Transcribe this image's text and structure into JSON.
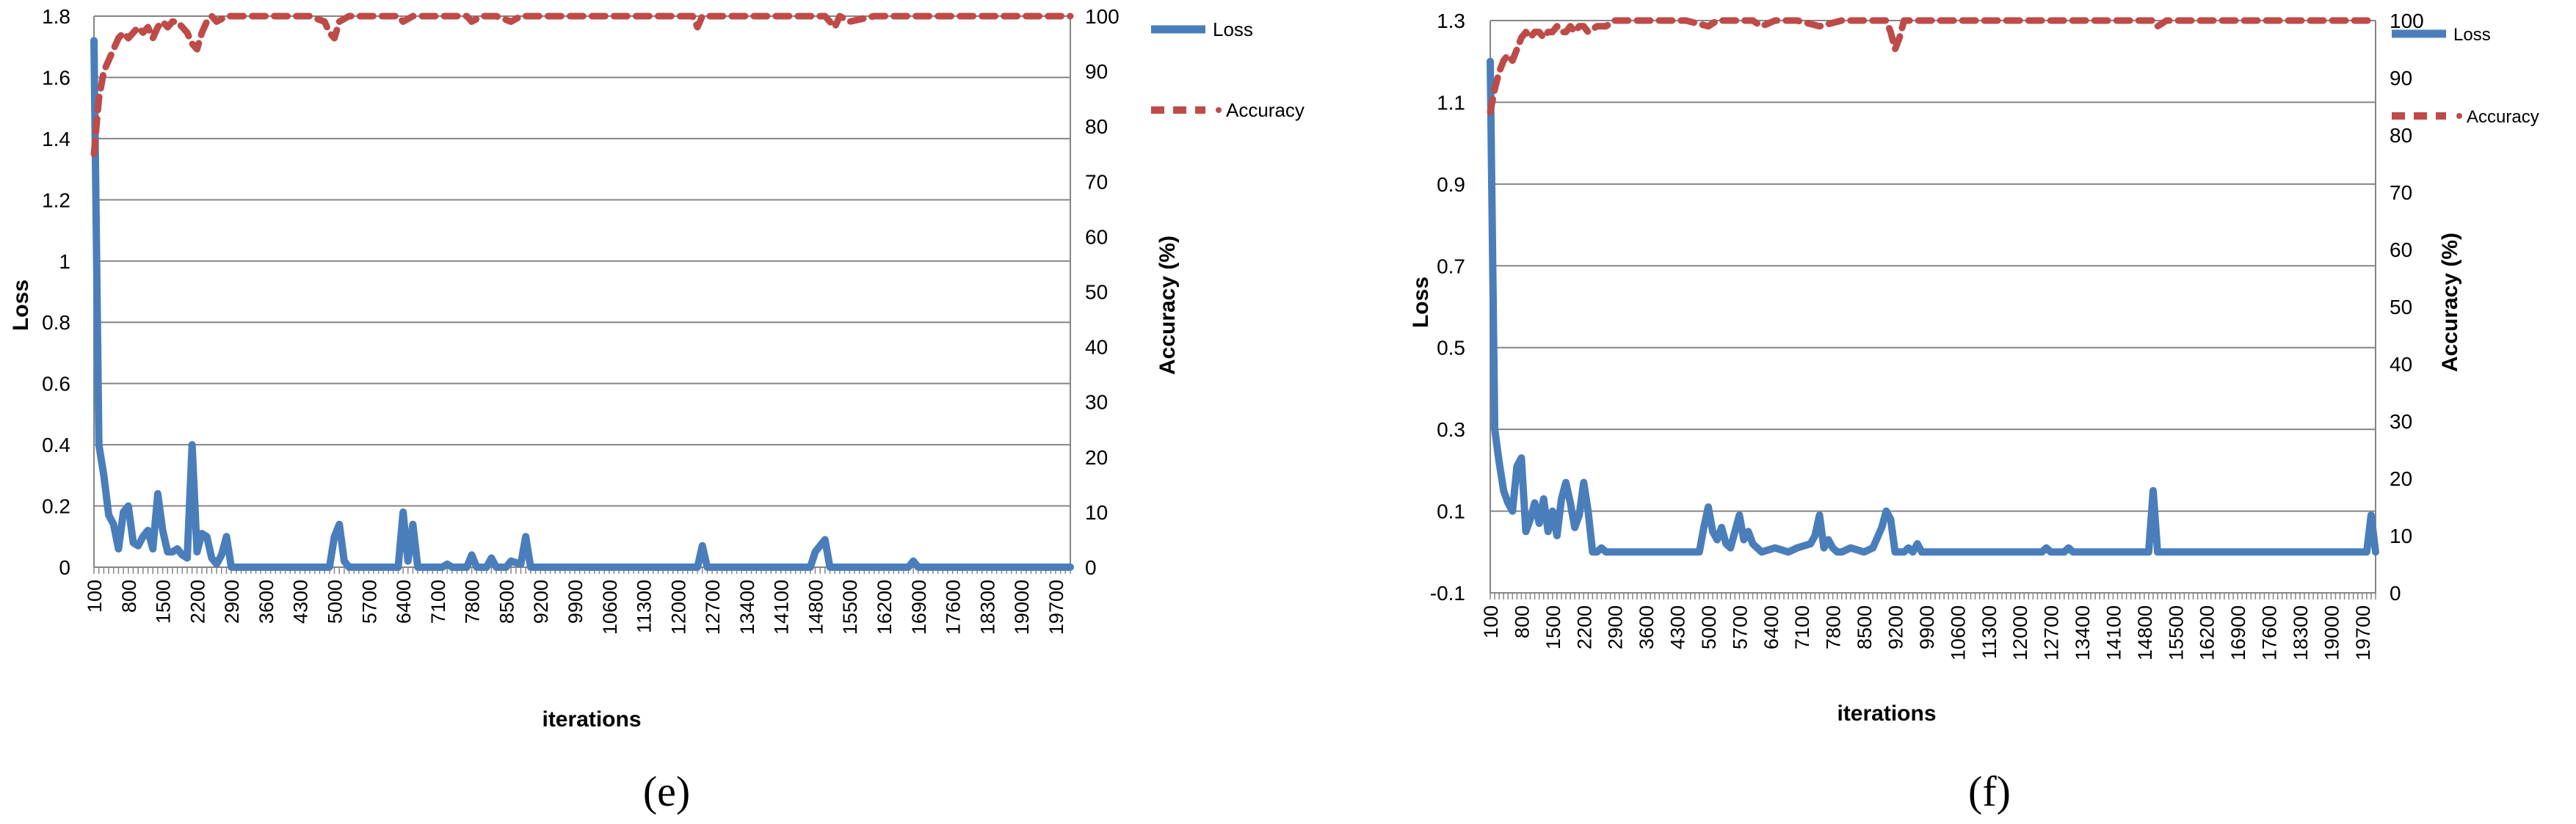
{
  "colors": {
    "loss": "#4a7ebb",
    "accuracy": "#be4b48",
    "grid": "#858585",
    "axis": "#858585",
    "text": "#000000"
  },
  "chart_data": [
    {
      "type": "line",
      "panel_label": "(e)",
      "xlabel": "iterations",
      "ylabel": "Loss",
      "y2label": "Accuracy (%)",
      "ylim": [
        0,
        1.8
      ],
      "yticks": [
        "0",
        "0.2",
        "0.4",
        "0.6",
        "0.8",
        "1",
        "1.2",
        "1.4",
        "1.6",
        "1.8"
      ],
      "y2lim": [
        0,
        100
      ],
      "y2ticks": [
        "0",
        "10",
        "20",
        "30",
        "40",
        "50",
        "60",
        "70",
        "80",
        "90",
        "100"
      ],
      "xlim": [
        100,
        20000
      ],
      "x_tick_labels": [
        "100",
        "800",
        "1500",
        "2200",
        "2900",
        "3600",
        "4300",
        "5000",
        "5700",
        "6400",
        "7100",
        "7800",
        "8500",
        "9200",
        "9900",
        "10600",
        "11300",
        "12000",
        "12700",
        "13400",
        "14100",
        "14800",
        "15500",
        "16200",
        "16900",
        "17600",
        "18300",
        "19000",
        "19700"
      ],
      "legend": [
        "Loss",
        "Accuracy"
      ],
      "legend_position": "right",
      "series": [
        {
          "name": "Loss",
          "axis": "left",
          "style": "solid",
          "x": [
            100,
            200,
            300,
            400,
            500,
            600,
            700,
            800,
            900,
            1000,
            1100,
            1200,
            1300,
            1400,
            1500,
            1600,
            1700,
            1800,
            1900,
            2000,
            2100,
            2200,
            2300,
            2400,
            2500,
            2600,
            2700,
            2800,
            2900,
            3000,
            3100,
            3300,
            4900,
            5000,
            5100,
            5200,
            5300,
            6300,
            6400,
            6500,
            6600,
            6700,
            6800,
            7200,
            7300,
            7400,
            7700,
            7800,
            7900,
            8100,
            8200,
            8300,
            8500,
            8600,
            8800,
            8900,
            9000,
            12400,
            12500,
            12600,
            14700,
            14800,
            14900,
            15000,
            15100,
            15200,
            16700,
            16800,
            16900,
            20000
          ],
          "values": [
            1.72,
            0.4,
            0.3,
            0.17,
            0.14,
            0.06,
            0.18,
            0.2,
            0.08,
            0.07,
            0.1,
            0.12,
            0.06,
            0.24,
            0.12,
            0.05,
            0.05,
            0.06,
            0.04,
            0.03,
            0.4,
            0.05,
            0.11,
            0.1,
            0.03,
            0.01,
            0.04,
            0.1,
            0.0,
            0.0,
            0.0,
            0.0,
            0.0,
            0.1,
            0.14,
            0.02,
            0.0,
            0.0,
            0.18,
            0.02,
            0.14,
            0.0,
            0.0,
            0.0,
            0.01,
            0.0,
            0.0,
            0.04,
            0.0,
            0.0,
            0.03,
            0.0,
            0.0,
            0.02,
            0.01,
            0.1,
            0.0,
            0.0,
            0.07,
            0.0,
            0.0,
            0.05,
            0.07,
            0.09,
            0.0,
            0.0,
            0.0,
            0.02,
            0.0,
            0.0
          ]
        },
        {
          "name": "Accuracy",
          "axis": "right",
          "style": "dashed",
          "x": [
            100,
            200,
            300,
            400,
            500,
            600,
            700,
            800,
            900,
            1000,
            1100,
            1200,
            1300,
            1400,
            1500,
            1600,
            1700,
            1800,
            1900,
            2000,
            2100,
            2200,
            2300,
            2400,
            2500,
            2600,
            2800,
            3000,
            3500,
            4000,
            4500,
            4800,
            4900,
            5000,
            5100,
            5300,
            5700,
            6300,
            6400,
            6600,
            7000,
            7700,
            7800,
            8000,
            8300,
            8600,
            8800,
            9000,
            9500,
            10500,
            11000,
            12000,
            12300,
            12400,
            12500,
            13000,
            14000,
            15000,
            15200,
            15300,
            15500,
            16000,
            17000,
            18000,
            19000,
            20000
          ],
          "values": [
            75,
            85,
            90,
            92,
            94,
            96,
            97,
            96,
            97,
            98,
            97,
            98,
            96,
            98,
            99,
            98,
            99,
            99,
            98,
            97,
            95,
            94,
            97,
            99,
            100,
            99,
            100,
            100,
            100,
            100,
            100,
            99,
            97,
            96,
            99,
            100,
            100,
            100,
            99,
            100,
            100,
            100,
            99,
            100,
            100,
            99,
            100,
            100,
            100,
            100,
            100,
            100,
            100,
            98,
            100,
            100,
            100,
            100,
            98,
            100,
            99,
            100,
            100,
            100,
            100,
            100
          ]
        }
      ]
    },
    {
      "type": "line",
      "panel_label": "(f)",
      "xlabel": "iterations",
      "ylabel": "Loss",
      "y2label": "Accuracy (%)",
      "ylim": [
        -0.1,
        1.3
      ],
      "yticks": [
        "-0.1",
        "0.1",
        "0.3",
        "0.5",
        "0.7",
        "0.9",
        "1.1",
        "1.3"
      ],
      "y2lim": [
        0,
        100
      ],
      "y2ticks": [
        "0",
        "10",
        "20",
        "30",
        "40",
        "50",
        "60",
        "70",
        "80",
        "90",
        "100"
      ],
      "xlim": [
        100,
        20000
      ],
      "x_tick_labels": [
        "100",
        "800",
        "1500",
        "2200",
        "2900",
        "3600",
        "4300",
        "5000",
        "5700",
        "6400",
        "7100",
        "7800",
        "8500",
        "9200",
        "9900",
        "10600",
        "11300",
        "12000",
        "12700",
        "13400",
        "14100",
        "14800",
        "15500",
        "16200",
        "16900",
        "17600",
        "18300",
        "19000",
        "19700"
      ],
      "legend": [
        "Loss",
        "Accuracy"
      ],
      "legend_position": "right",
      "series": [
        {
          "name": "Loss",
          "axis": "left",
          "style": "solid",
          "x": [
            100,
            200,
            300,
            400,
            500,
            600,
            700,
            800,
            900,
            1000,
            1100,
            1200,
            1300,
            1400,
            1500,
            1600,
            1700,
            1800,
            1900,
            2000,
            2100,
            2200,
            2300,
            2400,
            2500,
            2600,
            2700,
            2800,
            2900,
            3000,
            3100,
            3200,
            4800,
            4900,
            5000,
            5100,
            5200,
            5300,
            5400,
            5500,
            5600,
            5700,
            5800,
            5900,
            6000,
            6100,
            6200,
            6500,
            6800,
            7000,
            7300,
            7400,
            7500,
            7600,
            7700,
            7800,
            7900,
            8000,
            8200,
            8500,
            8700,
            8900,
            9000,
            9100,
            9200,
            9400,
            9500,
            9600,
            9700,
            9800,
            9900,
            12500,
            12600,
            12700,
            13000,
            13100,
            13200,
            14900,
            15000,
            15100,
            19800,
            19900,
            20000
          ],
          "values": [
            1.2,
            0.3,
            0.22,
            0.15,
            0.12,
            0.1,
            0.21,
            0.23,
            0.05,
            0.08,
            0.12,
            0.07,
            0.13,
            0.05,
            0.1,
            0.04,
            0.13,
            0.17,
            0.12,
            0.06,
            0.09,
            0.17,
            0.1,
            0.0,
            0.0,
            0.01,
            0.0,
            0.0,
            0.0,
            0.0,
            0.0,
            0.0,
            0.0,
            0.06,
            0.11,
            0.05,
            0.03,
            0.06,
            0.02,
            0.01,
            0.05,
            0.09,
            0.03,
            0.05,
            0.02,
            0.01,
            0.0,
            0.01,
            0.0,
            0.01,
            0.02,
            0.04,
            0.09,
            0.01,
            0.03,
            0.01,
            0.0,
            0.0,
            0.01,
            0.0,
            0.01,
            0.06,
            0.1,
            0.08,
            0.0,
            0.0,
            0.01,
            0.0,
            0.02,
            0.0,
            0.0,
            0.0,
            0.01,
            0.0,
            0.0,
            0.01,
            0.0,
            0.0,
            0.15,
            0.0,
            0.0,
            0.09,
            0.0
          ]
        },
        {
          "name": "Accuracy",
          "axis": "right",
          "style": "dashed",
          "x": [
            100,
            200,
            300,
            400,
            500,
            600,
            700,
            800,
            900,
            1000,
            1100,
            1200,
            1300,
            1400,
            1500,
            1600,
            1700,
            1800,
            1900,
            2000,
            2100,
            2200,
            2300,
            2500,
            2700,
            2900,
            3000,
            3500,
            4000,
            4500,
            5000,
            5200,
            5500,
            6000,
            6200,
            6500,
            7000,
            7500,
            8000,
            8500,
            9000,
            9100,
            9200,
            9300,
            9400,
            9600,
            10000,
            11000,
            12000,
            13000,
            14000,
            15000,
            15100,
            15300,
            16000,
            17000,
            18000,
            19000,
            20000
          ],
          "values": [
            84,
            88,
            91,
            93,
            94,
            93,
            95,
            97,
            98,
            97,
            98,
            98,
            97,
            98,
            98,
            99,
            98,
            98,
            99,
            98,
            99,
            99,
            98,
            99,
            99,
            100,
            100,
            100,
            100,
            100,
            99,
            100,
            100,
            100,
            99,
            100,
            100,
            99,
            100,
            100,
            100,
            98,
            95,
            97,
            100,
            100,
            100,
            100,
            100,
            100,
            100,
            100,
            99,
            100,
            100,
            100,
            100,
            100,
            100
          ]
        }
      ]
    }
  ]
}
